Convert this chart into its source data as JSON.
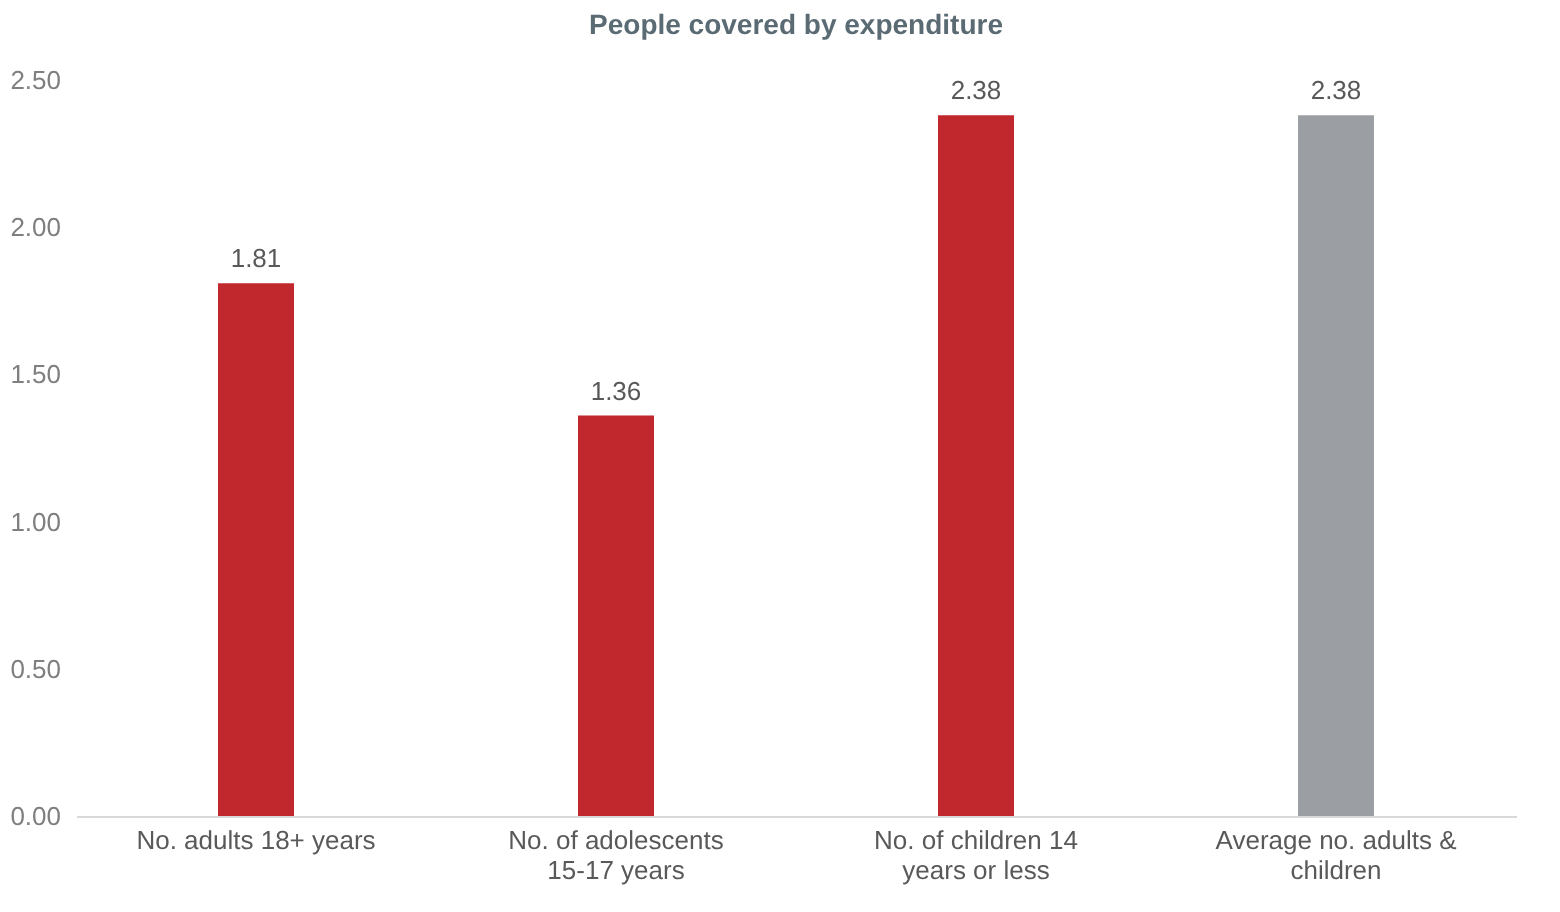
{
  "chart_data": {
    "type": "bar",
    "title": "People covered by expenditure",
    "categories": [
      "No. adults 18+ years",
      "No. of adolescents 15-17 years",
      "No. of children 14 years or less",
      "Average no. adults & children"
    ],
    "values": [
      1.81,
      1.36,
      2.38,
      2.38
    ],
    "colors": [
      "#c0282d",
      "#c0282d",
      "#c0282d",
      "#9b9fa3"
    ],
    "ylim": [
      0,
      2.5
    ],
    "yticks": [
      {
        "value": 0,
        "label": "0.00"
      },
      {
        "value": 0.5,
        "label": "0.50"
      },
      {
        "value": 1,
        "label": "1.00"
      },
      {
        "value": 1.5,
        "label": "1.50"
      },
      {
        "value": 2,
        "label": "2.00"
      },
      {
        "value": 2.5,
        "label": "2.50"
      }
    ],
    "data_labels": true,
    "grid": false
  }
}
